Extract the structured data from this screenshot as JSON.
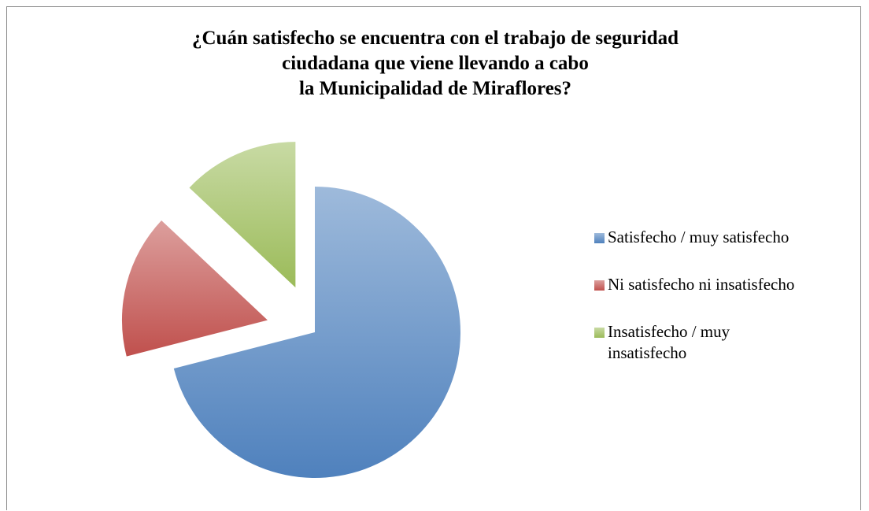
{
  "chart_data": {
    "type": "pie",
    "title": [
      "¿Cuán satisfecho se encuentra con el trabajo de seguridad",
      "ciudadana que viene llevando a cabo",
      "la Municipalidad de Miraflores?"
    ],
    "categories": [
      "Satisfecho / muy satisfecho",
      "Ni satisfecho ni insatisfecho",
      "Insatisfecho / muy insatisfecho"
    ],
    "values": [
      71,
      16,
      13
    ],
    "colors": [
      "#4f81bd",
      "#c0504d",
      "#9bbb59"
    ],
    "legend": "right"
  }
}
